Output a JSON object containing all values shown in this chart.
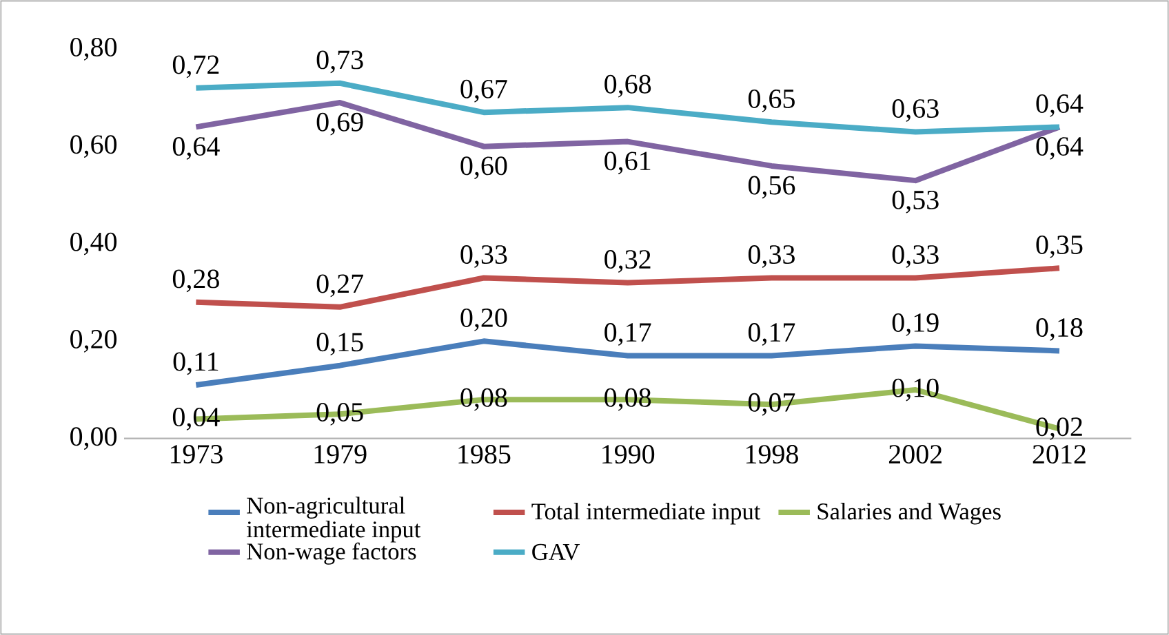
{
  "chart_data": {
    "type": "line",
    "categories": [
      "1973",
      "1979",
      "1985",
      "1990",
      "1998",
      "2002",
      "2012"
    ],
    "ylim": [
      0,
      0.8
    ],
    "yticks": [
      {
        "value": 0,
        "label": "0,00"
      },
      {
        "value": 0.2,
        "label": "0,20"
      },
      {
        "value": 0.4,
        "label": "0,40"
      },
      {
        "value": 0.6,
        "label": "0,60"
      },
      {
        "value": 0.8,
        "label": "0,80"
      }
    ],
    "legend": "bottom",
    "grid": false,
    "series": [
      {
        "name": "Non-agricultural intermediate input",
        "color": "#4a7ebb",
        "values": [
          0.11,
          0.15,
          0.2,
          0.17,
          0.17,
          0.19,
          0.18
        ],
        "value_labels": [
          "0,11",
          "0,15",
          "0,20",
          "0,17",
          "0,17",
          "0,19",
          "0,18"
        ]
      },
      {
        "name": "Total intermediate input",
        "color": "#c0504d",
        "values": [
          0.28,
          0.27,
          0.33,
          0.32,
          0.33,
          0.33,
          0.35
        ],
        "value_labels": [
          "0,28",
          "0,27",
          "0,33",
          "0,32",
          "0,33",
          "0,33",
          "0,35"
        ]
      },
      {
        "name": "Salaries and Wages",
        "color": "#9bbb59",
        "values": [
          0.04,
          0.05,
          0.08,
          0.08,
          0.07,
          0.1,
          0.02
        ],
        "value_labels": [
          "0,04",
          "0,05",
          "0,08",
          "0,08",
          "0,07",
          "0,10",
          "0,02"
        ]
      },
      {
        "name": "Non-wage factors",
        "color": "#8064a2",
        "values": [
          0.64,
          0.69,
          0.6,
          0.61,
          0.56,
          0.53,
          0.64
        ],
        "value_labels": [
          "0,64",
          "0,69",
          "0,60",
          "0,61",
          "0,56",
          "0,53",
          "0,64"
        ]
      },
      {
        "name": "GAV",
        "color": "#4bacc6",
        "values": [
          0.72,
          0.73,
          0.67,
          0.68,
          0.65,
          0.63,
          0.64
        ],
        "value_labels": [
          "0,72",
          "0,73",
          "0,67",
          "0,68",
          "0,65",
          "0,63",
          "0,64"
        ]
      }
    ]
  }
}
